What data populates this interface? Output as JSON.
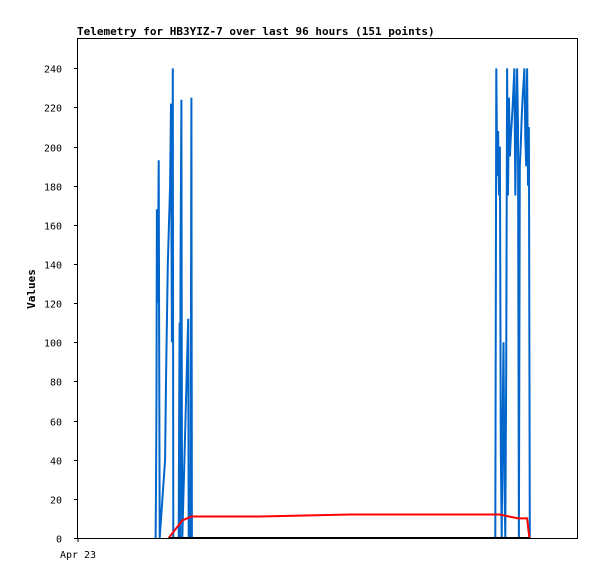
{
  "chart_data": {
    "type": "line",
    "title": "Telemetry for HB3YIZ-7 over last 96 hours (151 points)",
    "xlabel": "",
    "ylabel": "Values",
    "ylim": [
      0,
      255
    ],
    "yticks": [
      0,
      20,
      40,
      60,
      80,
      100,
      120,
      140,
      160,
      180,
      200,
      220,
      240
    ],
    "xlim": [
      0,
      96
    ],
    "xtick_labels": [
      {
        "x": 0,
        "label": "Apr 23"
      }
    ],
    "grid": false,
    "legend": "none",
    "series": [
      {
        "color": "#0066cc",
        "x": [
          17.1,
          17.2,
          17.3,
          17.4,
          17.6,
          17.8,
          17.9,
          18.0,
          19.2,
          19.4,
          19.8,
          20.3,
          20.5,
          20.7,
          20.9,
          21.0,
          22.2,
          22.3,
          22.4,
          22.5,
          22.6,
          22.8,
          22.9,
          23.0,
          24.3,
          24.4,
          24.6,
          24.7,
          24.8,
          25.0,
          25.1,
          92.0,
          92.2,
          92.4,
          92.6,
          92.8,
          93.0,
          93.2,
          93.4,
          93.6,
          93.8,
          94.0,
          94.2,
          94.4,
          94.6,
          94.8,
          95.0,
          95.2,
          95.4,
          95.6,
          95.8,
          96.0,
          96.2,
          96.4,
          96.6,
          96.8,
          97.0,
          97.2,
          97.4,
          97.6,
          97.8,
          98.0,
          98.2,
          98.4,
          98.6,
          98.8,
          99.0,
          99.2,
          99.4,
          99.6
        ],
        "values": [
          0,
          25,
          75,
          168,
          120,
          193,
          95,
          0,
          40,
          80,
          140,
          180,
          222,
          100,
          240,
          0,
          0,
          70,
          110,
          0,
          135,
          224,
          50,
          0,
          112,
          0,
          17,
          12,
          0,
          225,
          0,
          0,
          240,
          185,
          208,
          175,
          200,
          45,
          0,
          60,
          100,
          30,
          0,
          85,
          240,
          175,
          225,
          195,
          205,
          212,
          220,
          230,
          240,
          175,
          208,
          240,
          210,
          0,
          190,
          200,
          215,
          225,
          232,
          240,
          205,
          190,
          240,
          180,
          210,
          0
        ],
        "comment_shape": "vertical spikes between 0 and 240 clustered in two bursts"
      },
      {
        "color": "#ff0000",
        "x": [
          20,
          23,
          24,
          25,
          30,
          40,
          50,
          60,
          70,
          75,
          80,
          85,
          90,
          93,
          97,
          98,
          99,
          99.5
        ],
        "values": [
          0,
          9,
          10,
          11,
          11,
          11,
          11.5,
          12,
          12,
          12,
          12,
          12,
          12,
          12,
          10,
          10,
          10,
          0
        ]
      },
      {
        "color": "#000000",
        "x": [
          20,
          99.5
        ],
        "values": [
          0,
          0
        ]
      }
    ]
  }
}
